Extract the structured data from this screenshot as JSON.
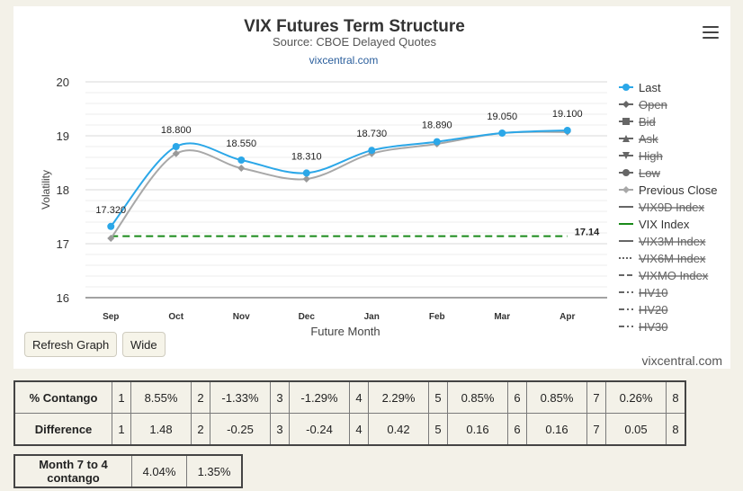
{
  "chart_data": {
    "type": "line",
    "title": "VIX Futures Term Structure",
    "subtitle": "Source: CBOE Delayed Quotes",
    "link": "vixcentral.com",
    "xlabel": "Future Month",
    "ylabel": "Volatility",
    "categories": [
      "Sep",
      "Oct",
      "Nov",
      "Dec",
      "Jan",
      "Feb",
      "Mar",
      "Apr"
    ],
    "ylim": [
      16,
      20
    ],
    "yticks": [
      "16",
      "17",
      "18",
      "19",
      "20"
    ],
    "grid": true,
    "legend_position": "right",
    "series": [
      {
        "name": "Last",
        "color": "#2ba7e8",
        "values": [
          17.32,
          18.8,
          18.55,
          18.31,
          18.73,
          18.89,
          19.05,
          19.1
        ],
        "labels": [
          "17.320",
          "18.800",
          "18.550",
          "18.310",
          "18.730",
          "18.890",
          "19.050",
          "19.100"
        ]
      },
      {
        "name": "Previous Close",
        "color": "#a8a8a8",
        "values": [
          17.1,
          18.67,
          18.4,
          18.2,
          18.67,
          18.85,
          19.05,
          19.07
        ]
      },
      {
        "name": "VIX Index",
        "color": "#1a8a1a",
        "values": [
          17.14,
          17.14,
          17.14,
          17.14,
          17.14,
          17.14,
          17.14,
          17.14
        ],
        "end_label": "17.14"
      }
    ],
    "legend": [
      {
        "name": "Last",
        "symbol": "dot",
        "color": "#2ba7e8",
        "hidden": false
      },
      {
        "name": "Open",
        "symbol": "diamond",
        "color": "#666666",
        "hidden": true
      },
      {
        "name": "Bid",
        "symbol": "square",
        "color": "#666666",
        "hidden": true
      },
      {
        "name": "Ask",
        "symbol": "triangle",
        "color": "#666666",
        "hidden": true
      },
      {
        "name": "High",
        "symbol": "triangle-down",
        "color": "#666666",
        "hidden": true
      },
      {
        "name": "Low",
        "symbol": "dot",
        "color": "#666666",
        "hidden": true
      },
      {
        "name": "Previous Close",
        "symbol": "diamond",
        "color": "#a8a8a8",
        "hidden": false
      },
      {
        "name": "VIX9D Index",
        "symbol": "solid",
        "color": "#666666",
        "hidden": true
      },
      {
        "name": "VIX Index",
        "symbol": "solid",
        "color": "#1a8a1a",
        "hidden": false
      },
      {
        "name": "VIX3M Index",
        "symbol": "solid",
        "color": "#666666",
        "hidden": true
      },
      {
        "name": "VIX6M Index",
        "symbol": "dotted",
        "color": "#666666",
        "hidden": true
      },
      {
        "name": "VIXMO Index",
        "symbol": "dashed",
        "color": "#666666",
        "hidden": true
      },
      {
        "name": "HV10",
        "symbol": "dashdot",
        "color": "#666666",
        "hidden": true
      },
      {
        "name": "HV20",
        "symbol": "dashdot",
        "color": "#666666",
        "hidden": true
      },
      {
        "name": "HV30",
        "symbol": "dashdot",
        "color": "#666666",
        "hidden": true
      }
    ]
  },
  "controls": {
    "refresh_label": "Refresh Graph",
    "wide_label": "Wide"
  },
  "credit": "vixcentral.com",
  "menu_icon": "hamburger-menu-icon",
  "contango_table": {
    "rows": [
      {
        "label": "% Contango",
        "cells": [
          [
            "1",
            "8.55%"
          ],
          [
            "2",
            "-1.33%"
          ],
          [
            "3",
            "-1.29%"
          ],
          [
            "4",
            "2.29%"
          ],
          [
            "5",
            "0.85%"
          ],
          [
            "6",
            "0.85%"
          ],
          [
            "7",
            "0.26%"
          ],
          [
            "8",
            ""
          ]
        ]
      },
      {
        "label": "Difference",
        "cells": [
          [
            "1",
            "1.48"
          ],
          [
            "2",
            "-0.25"
          ],
          [
            "3",
            "-0.24"
          ],
          [
            "4",
            "0.42"
          ],
          [
            "5",
            "0.16"
          ],
          [
            "6",
            "0.16"
          ],
          [
            "7",
            "0.05"
          ],
          [
            "8",
            ""
          ]
        ]
      }
    ]
  },
  "month_7_4": {
    "label": "Month 7 to 4 contango",
    "value1": "4.04%",
    "value2": "1.35%"
  }
}
